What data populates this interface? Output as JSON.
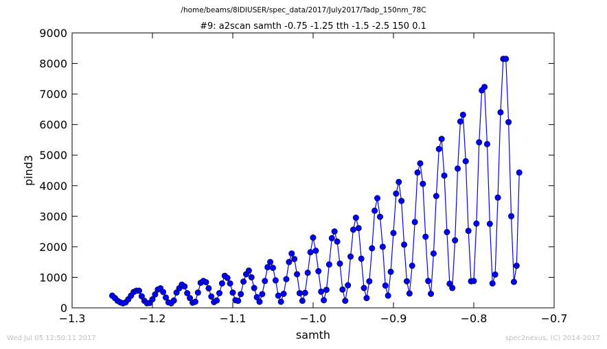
{
  "figure": {
    "suptitle": "/home/beams/8IDIUSER/spec_data/2017/July2017/Tadp_150nm_78C",
    "timestamp": "Wed Jul 05 12:50:11 2017",
    "credit": "spec2nexus, (C) 2014-2017"
  },
  "chart_data": {
    "type": "line",
    "title": "#9: a2scan  samth -0.75 -1.25  tth -1.5 -2.5  150 0.1",
    "xlabel": "samth",
    "ylabel": "pind3",
    "xlim": [
      -1.3,
      -0.7
    ],
    "ylim": [
      0,
      9000
    ],
    "xticks": [
      -1.3,
      -1.2,
      -1.1,
      -1.0,
      -0.9,
      -0.8,
      -0.7
    ],
    "xtick_labels": [
      "−1.3",
      "−1.2",
      "−1.1",
      "−1.0",
      "−0.9",
      "−0.8",
      "−0.7"
    ],
    "yticks": [
      0,
      1000,
      2000,
      3000,
      4000,
      5000,
      6000,
      7000,
      8000,
      9000
    ],
    "ytick_labels": [
      "0",
      "1000",
      "2000",
      "3000",
      "4000",
      "5000",
      "6000",
      "7000",
      "8000",
      "9000"
    ],
    "grid": false,
    "series_color": "#0000ff",
    "marker": "circle",
    "x_start": -1.25,
    "x_step": 0.003333,
    "values": [
      400,
      320,
      230,
      180,
      150,
      180,
      280,
      400,
      520,
      560,
      560,
      380,
      230,
      150,
      160,
      280,
      440,
      600,
      640,
      520,
      340,
      180,
      150,
      240,
      500,
      640,
      760,
      700,
      480,
      320,
      170,
      200,
      500,
      820,
      880,
      840,
      640,
      370,
      190,
      240,
      480,
      800,
      1050,
      980,
      800,
      500,
      250,
      230,
      450,
      860,
      1100,
      1220,
      1000,
      650,
      350,
      200,
      450,
      880,
      1330,
      1500,
      1310,
      900,
      400,
      200,
      460,
      940,
      1500,
      1780,
      1600,
      1100,
      480,
      230,
      490,
      1150,
      1820,
      2300,
      1870,
      1200,
      530,
      250,
      590,
      1420,
      2280,
      2500,
      2170,
      1450,
      600,
      230,
      740,
      1680,
      2560,
      2950,
      2610,
      1610,
      650,
      320,
      870,
      1950,
      3180,
      3590,
      2980,
      2000,
      730,
      400,
      1180,
      2450,
      3740,
      4120,
      3500,
      2070,
      870,
      470,
      1380,
      2810,
      4430,
      4730,
      4060,
      2330,
      880,
      460,
      1780,
      3660,
      5200,
      5530,
      4330,
      2480,
      790,
      650,
      2210,
      4560,
      6100,
      6320,
      4800,
      2520,
      870,
      880,
      2760,
      5420,
      7120,
      7230,
      5360,
      2750,
      800,
      1090,
      3610,
      6400,
      8150,
      8150,
      6080,
      3000,
      850,
      1380,
      4430
    ]
  }
}
